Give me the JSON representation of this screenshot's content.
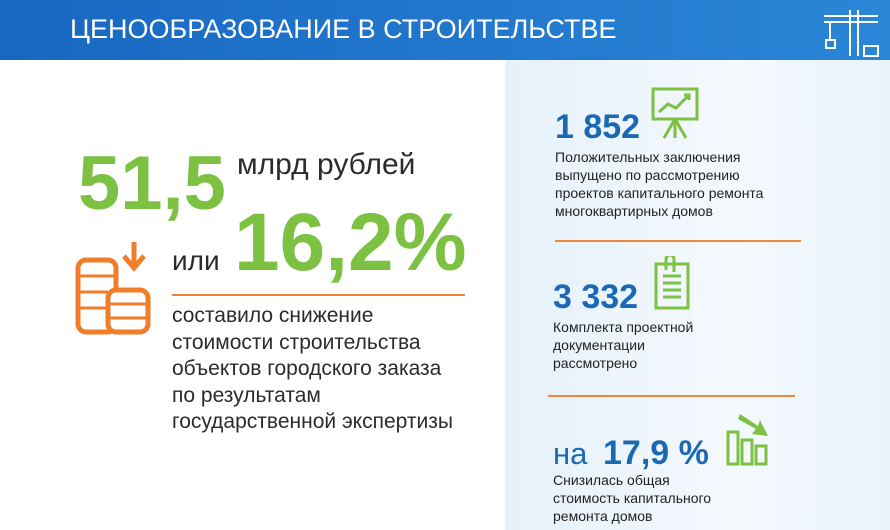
{
  "header": {
    "title": "ЦЕНООБРАЗОВАНИЕ В СТРОИТЕЛЬСТВЕ"
  },
  "main": {
    "amount": "51,5",
    "unit": "млрд рублей",
    "connector": "или",
    "percent": "16,2%",
    "description": [
      "составило снижение",
      "стоимости строительства",
      "объектов городского заказа",
      "по результатам",
      "государственной экспертизы"
    ]
  },
  "stats": [
    {
      "value": "1 852",
      "description": [
        "Положительных заключения",
        "выпущено по рассмотрению",
        "проектов капитального ремонта",
        "многоквартирных домов"
      ]
    },
    {
      "value": "3 332",
      "description": [
        "Комплекта проектной",
        "документации",
        "рассмотрено"
      ]
    },
    {
      "prefix": "на",
      "value": "17,9 %",
      "description": [
        "Снизилась общая",
        "стоимость капитального",
        "ремонта домов"
      ]
    }
  ]
}
